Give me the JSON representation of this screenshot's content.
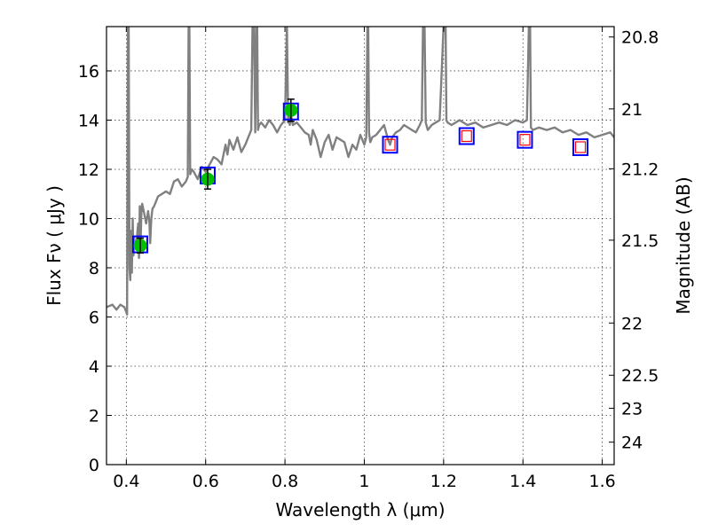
{
  "chart_data": {
    "type": "line",
    "xlabel": "Wavelength  λ (μm)",
    "ylabel": "Flux  Fν  ( μJy )",
    "ylabel_right": "Magnitude (AB)",
    "xlim": [
      0.35,
      1.63
    ],
    "ylim": [
      0,
      17.8
    ],
    "grid": true,
    "x_ticks": [
      0.4,
      0.6,
      0.8,
      1.0,
      1.2,
      1.4,
      1.6
    ],
    "x_tick_labels": [
      "0.4",
      "0.6",
      "0.8",
      "1",
      "1.2",
      "1.4",
      "1.6"
    ],
    "y_ticks": [
      0,
      2,
      4,
      6,
      8,
      10,
      12,
      14,
      16
    ],
    "y_tick_labels": [
      "0",
      "2",
      "4",
      "6",
      "8",
      "10",
      "12",
      "14",
      "16"
    ],
    "mag_ticks": [
      20.8,
      21,
      21.2,
      21.5,
      22,
      22.5,
      23,
      24
    ],
    "mag_tick_labels": [
      "20.8",
      "21",
      "21.2",
      "21.5",
      "22",
      "22.5",
      "23",
      "24"
    ],
    "colors": {
      "spectrum": "#808080",
      "model_box": "#0000ff",
      "predicted_box": "#ff0000",
      "observed": "#00bf00",
      "errorbar": "#000000"
    },
    "series": [
      {
        "kind": "spectrum",
        "x": [
          0.35,
          0.365,
          0.375,
          0.385,
          0.395,
          0.4,
          0.402,
          0.404,
          0.406,
          0.408,
          0.41,
          0.412,
          0.414,
          0.416,
          0.418,
          0.42,
          0.422,
          0.425,
          0.428,
          0.43,
          0.432,
          0.434,
          0.436,
          0.438,
          0.44,
          0.445,
          0.45,
          0.455,
          0.458,
          0.46,
          0.463,
          0.466,
          0.47,
          0.48,
          0.49,
          0.5,
          0.51,
          0.52,
          0.53,
          0.54,
          0.55,
          0.555,
          0.557,
          0.559,
          0.561,
          0.565,
          0.57,
          0.58,
          0.59,
          0.6,
          0.61,
          0.62,
          0.63,
          0.64,
          0.65,
          0.655,
          0.66,
          0.67,
          0.68,
          0.69,
          0.7,
          0.71,
          0.715,
          0.718,
          0.72,
          0.722,
          0.725,
          0.728,
          0.73,
          0.732,
          0.735,
          0.74,
          0.75,
          0.76,
          0.77,
          0.78,
          0.79,
          0.8,
          0.805,
          0.808,
          0.81,
          0.812,
          0.815,
          0.82,
          0.83,
          0.84,
          0.85,
          0.86,
          0.865,
          0.87,
          0.88,
          0.89,
          0.9,
          0.91,
          0.92,
          0.93,
          0.94,
          0.95,
          0.96,
          0.97,
          0.98,
          0.99,
          1.0,
          1.005,
          1.008,
          1.01,
          1.012,
          1.015,
          1.02,
          1.03,
          1.04,
          1.05,
          1.06,
          1.065,
          1.07,
          1.08,
          1.09,
          1.1,
          1.11,
          1.12,
          1.13,
          1.14,
          1.145,
          1.148,
          1.15,
          1.152,
          1.155,
          1.16,
          1.17,
          1.18,
          1.19,
          1.2,
          1.203,
          1.205,
          1.207,
          1.21,
          1.22,
          1.24,
          1.26,
          1.28,
          1.3,
          1.32,
          1.34,
          1.36,
          1.38,
          1.4,
          1.41,
          1.415,
          1.418,
          1.42,
          1.425,
          1.44,
          1.46,
          1.48,
          1.5,
          1.52,
          1.54,
          1.56,
          1.58,
          1.6,
          1.62,
          1.63
        ],
        "y": [
          6.4,
          6.5,
          6.3,
          6.5,
          6.4,
          6.2,
          6.1,
          17.8,
          17.8,
          8.0,
          7.5,
          9.5,
          7.8,
          10.0,
          8.5,
          9.2,
          9.0,
          8.8,
          9.5,
          9.8,
          8.4,
          10.5,
          9.0,
          10.2,
          10.6,
          10.2,
          9.8,
          10.3,
          9.9,
          9.0,
          10.0,
          10.4,
          10.5,
          10.9,
          11.0,
          11.1,
          11.0,
          11.5,
          11.6,
          11.3,
          11.5,
          11.7,
          17.8,
          17.8,
          11.8,
          12.0,
          11.9,
          11.6,
          12.1,
          11.9,
          12.2,
          12.5,
          12.4,
          12.2,
          13.0,
          12.6,
          13.2,
          12.8,
          13.3,
          12.7,
          13.0,
          13.4,
          13.6,
          17.8,
          17.8,
          17.8,
          13.5,
          17.8,
          17.8,
          13.6,
          13.8,
          13.9,
          13.7,
          14.0,
          13.8,
          13.5,
          13.8,
          14.0,
          17.8,
          13.9,
          14.5,
          13.8,
          14.2,
          13.8,
          13.9,
          13.7,
          13.5,
          13.4,
          13.0,
          13.6,
          13.2,
          12.5,
          13.1,
          13.4,
          12.8,
          13.3,
          13.2,
          13.1,
          12.5,
          13.0,
          12.8,
          13.4,
          13.0,
          13.3,
          17.8,
          17.8,
          13.5,
          13.1,
          13.3,
          13.4,
          13.6,
          13.8,
          13.2,
          13.0,
          13.3,
          13.5,
          13.6,
          13.8,
          13.7,
          13.6,
          13.5,
          13.8,
          14.0,
          17.8,
          17.8,
          17.8,
          13.9,
          13.6,
          13.8,
          13.9,
          14.0,
          17.8,
          17.8,
          17.8,
          14.0,
          13.9,
          13.8,
          14.0,
          13.8,
          13.9,
          13.7,
          13.8,
          13.9,
          13.8,
          14.0,
          13.9,
          14.0,
          17.8,
          17.8,
          13.7,
          13.6,
          13.7,
          13.6,
          13.7,
          13.5,
          13.6,
          13.4,
          13.5,
          13.3,
          13.4,
          13.5,
          13.3
        ]
      },
      {
        "kind": "model_photometry",
        "x": [
          0.435,
          0.605,
          0.815,
          1.065,
          1.258,
          1.405,
          1.545
        ],
        "y": [
          8.95,
          11.75,
          14.35,
          13.0,
          13.35,
          13.2,
          12.9
        ]
      },
      {
        "kind": "predicted_photometry",
        "x": [
          1.065,
          1.258,
          1.405,
          1.545
        ],
        "y": [
          13.0,
          13.35,
          13.2,
          12.9
        ]
      },
      {
        "kind": "observed_photometry",
        "x": [
          0.435,
          0.605,
          0.815
        ],
        "y": [
          8.9,
          11.6,
          14.4
        ],
        "yerr": [
          0.3,
          0.4,
          0.45
        ]
      }
    ]
  }
}
